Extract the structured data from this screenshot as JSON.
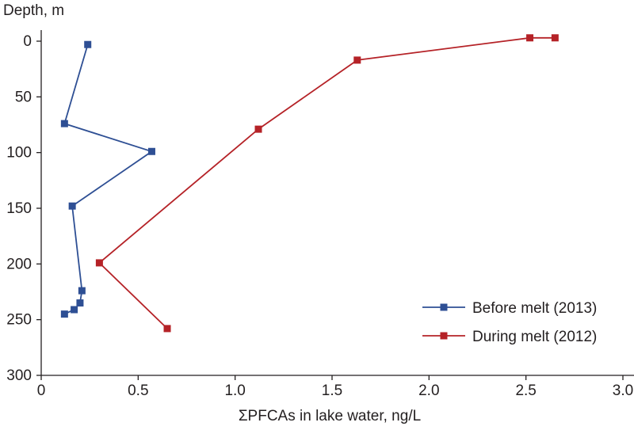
{
  "chart_data": {
    "type": "line",
    "xlabel": "ΣPFCAs in lake water, ng/L",
    "ylabel": "Depth, m",
    "xlim": [
      0,
      3.0
    ],
    "ylim": [
      0,
      300
    ],
    "y_inverted": true,
    "xticks": [
      "0",
      "0.5",
      "1.0",
      "1.5",
      "2.0",
      "2.5",
      "3.0"
    ],
    "xtick_values": [
      0,
      0.5,
      1.0,
      1.5,
      2.0,
      2.5,
      3.0
    ],
    "yticks": [
      "0",
      "50",
      "100",
      "150",
      "200",
      "250",
      "300"
    ],
    "ytick_values": [
      0,
      50,
      100,
      150,
      200,
      250,
      300
    ],
    "legend_position": "bottom-right",
    "grid": false,
    "series": [
      {
        "name": "Before melt (2013)",
        "color": "#2e4f94",
        "marker": "square",
        "points": [
          {
            "x": 0.24,
            "y": 3
          },
          {
            "x": 0.12,
            "y": 74
          },
          {
            "x": 0.57,
            "y": 99
          },
          {
            "x": 0.16,
            "y": 148
          },
          {
            "x": 0.21,
            "y": 224
          },
          {
            "x": 0.2,
            "y": 235
          },
          {
            "x": 0.17,
            "y": 241
          },
          {
            "x": 0.12,
            "y": 245
          }
        ]
      },
      {
        "name": "During melt (2012)",
        "color": "#b52227",
        "marker": "square",
        "points": [
          {
            "x": 2.65,
            "y": -3
          },
          {
            "x": 2.52,
            "y": -3
          },
          {
            "x": 1.63,
            "y": 17
          },
          {
            "x": 1.12,
            "y": 79
          },
          {
            "x": 0.3,
            "y": 199
          },
          {
            "x": 0.65,
            "y": 258
          }
        ]
      }
    ]
  }
}
